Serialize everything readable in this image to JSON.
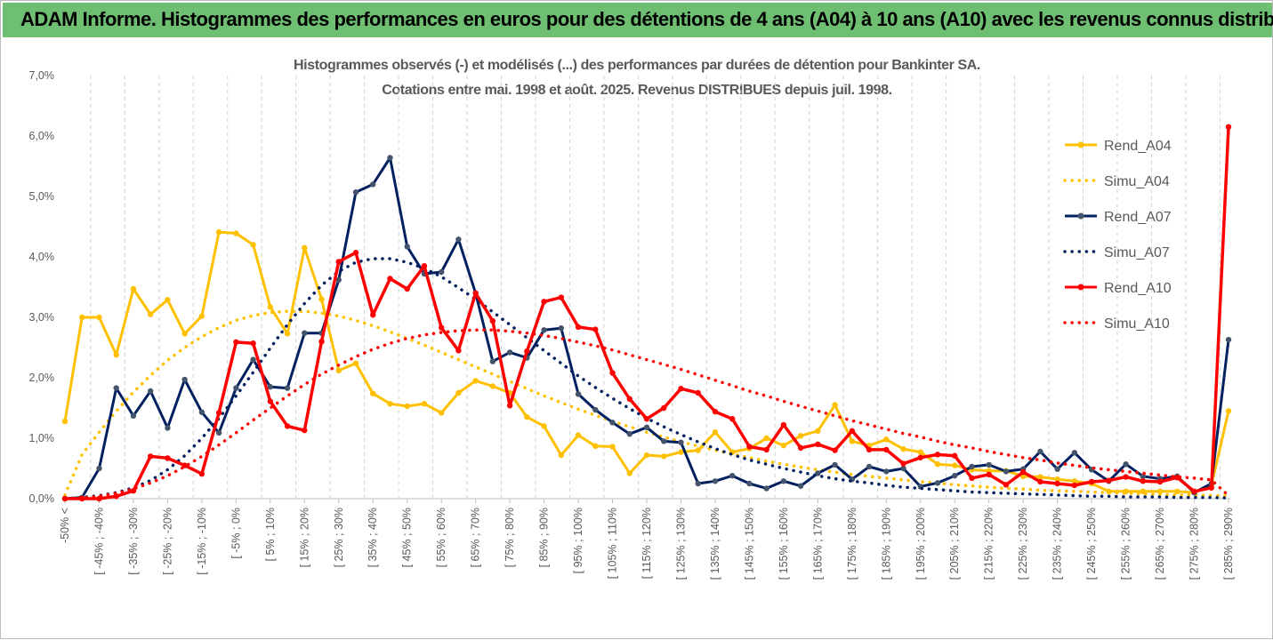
{
  "header": {
    "title": "ADAM Informe. Histogrammes des performances en euros pour des détentions de 4 ans (A04) à 10 ans (A10) avec les revenus connus distribués"
  },
  "chart_data": {
    "type": "line",
    "subtitle_line1": "Histogrammes observés (-) et modélisés (...) des performances par durées de détention pour Bankinter SA.",
    "subtitle_line2": "Cotations entre mai. 1998 et août. 2025. Revenus DISTRIBUES depuis juil. 1998.",
    "ylim": [
      0,
      7
    ],
    "yticks": [
      "0,0%",
      "1,0%",
      "2,0%",
      "3,0%",
      "4,0%",
      "5,0%",
      "6,0%",
      "7,0%"
    ],
    "grid": "vertical dashed",
    "legend_position": "right",
    "x_tick_labels": [
      "-50% <",
      "[ -45% ; -40%",
      "[ -35% ; -30%",
      "[ -25% ; -20%",
      "[ -15% ; -10%",
      "[ -5% ; 0%",
      "[ 5% ; 10%",
      "[ 15% ; 20%",
      "[ 25% ; 30%",
      "[ 35% ; 40%",
      "[ 45% ; 50%",
      "[ 55% ; 60%",
      "[ 65% ; 70%",
      "[ 75% ; 80%",
      "[ 85% ; 90%",
      "[ 95% ; 100%",
      "[ 105% ; 110%",
      "[ 115% ; 120%",
      "[ 125% ; 130%",
      "[ 135% ; 140%",
      "[ 145% ; 150%",
      "[ 155% ; 160%",
      "[ 165% ; 170%",
      "[ 175% ; 180%",
      "[ 185% ; 190%",
      "[ 195% ; 200%",
      "[ 205% ; 210%",
      "[ 215% ; 220%",
      "[ 225% ; 230%",
      "[ 235% ; 240%",
      "[ 245% ; 250%",
      "[ 255% ; 260%",
      "[ 265% ; 270%",
      "[ 275% ; 280%",
      "[ 285% ; 290%"
    ],
    "series": [
      {
        "name": "Rend_A04",
        "style": "solid",
        "color": "#ffc000",
        "values": [
          1.28,
          3.0,
          3.0,
          2.38,
          3.47,
          3.05,
          3.29,
          2.73,
          3.02,
          4.41,
          4.39,
          4.2,
          3.17,
          2.73,
          4.15,
          3.3,
          2.12,
          2.24,
          1.74,
          1.57,
          1.53,
          1.57,
          1.42,
          1.75,
          1.95,
          1.86,
          1.75,
          1.35,
          1.2,
          0.72,
          1.05,
          0.87,
          0.86,
          0.42,
          0.72,
          0.7,
          0.77,
          0.8,
          1.1,
          0.77,
          0.83,
          1.0,
          0.88,
          1.04,
          1.12,
          1.55,
          0.95,
          0.88,
          0.98,
          0.82,
          0.77,
          0.57,
          0.55,
          0.48,
          0.46,
          0.46,
          0.37,
          0.36,
          0.32,
          0.29,
          0.25,
          0.12,
          0.12,
          0.12,
          0.12,
          0.12,
          0.1,
          0.22,
          1.45
        ]
      },
      {
        "name": "Simu_A04",
        "style": "dotted",
        "color": "#ffc000",
        "values": [
          0.06,
          0.73,
          1.1,
          1.45,
          1.76,
          2.04,
          2.29,
          2.5,
          2.68,
          2.83,
          2.95,
          3.03,
          3.08,
          3.1,
          3.1,
          3.07,
          3.02,
          2.95,
          2.86,
          2.76,
          2.65,
          2.54,
          2.42,
          2.3,
          2.18,
          2.06,
          1.94,
          1.82,
          1.7,
          1.59,
          1.48,
          1.38,
          1.28,
          1.19,
          1.1,
          1.02,
          0.94,
          0.87,
          0.8,
          0.74,
          0.68,
          0.62,
          0.57,
          0.52,
          0.48,
          0.44,
          0.4,
          0.37,
          0.34,
          0.31,
          0.28,
          0.26,
          0.23,
          0.21,
          0.19,
          0.17,
          0.16,
          0.14,
          0.13,
          0.12,
          0.11,
          0.1,
          0.09,
          0.08,
          0.07,
          0.06,
          0.06,
          0.05,
          0.05
        ]
      },
      {
        "name": "Rend_A07",
        "style": "solid",
        "color": "#002060",
        "values": [
          0.0,
          0.02,
          0.5,
          1.83,
          1.37,
          1.78,
          1.17,
          1.97,
          1.43,
          1.09,
          1.83,
          2.3,
          1.85,
          1.83,
          2.74,
          2.74,
          3.62,
          5.07,
          5.2,
          5.64,
          4.17,
          3.72,
          3.75,
          4.29,
          3.4,
          2.27,
          2.42,
          2.33,
          2.79,
          2.82,
          1.73,
          1.47,
          1.26,
          1.07,
          1.18,
          0.95,
          0.93,
          0.25,
          0.29,
          0.38,
          0.25,
          0.17,
          0.29,
          0.21,
          0.42,
          0.56,
          0.32,
          0.53,
          0.45,
          0.5,
          0.2,
          0.26,
          0.38,
          0.53,
          0.56,
          0.45,
          0.49,
          0.78,
          0.49,
          0.76,
          0.48,
          0.29,
          0.57,
          0.37,
          0.33,
          0.37,
          0.1,
          0.25,
          2.63
        ]
      },
      {
        "name": "Simu_A07",
        "style": "dotted",
        "color": "#002060",
        "values": [
          0.0,
          0.02,
          0.05,
          0.1,
          0.18,
          0.3,
          0.48,
          0.71,
          1.0,
          1.33,
          1.7,
          2.09,
          2.49,
          2.88,
          3.23,
          3.53,
          3.76,
          3.91,
          3.97,
          3.97,
          3.91,
          3.81,
          3.67,
          3.49,
          3.3,
          3.09,
          2.88,
          2.66,
          2.45,
          2.24,
          2.03,
          1.84,
          1.66,
          1.49,
          1.33,
          1.19,
          1.06,
          0.94,
          0.83,
          0.73,
          0.64,
          0.57,
          0.5,
          0.44,
          0.38,
          0.33,
          0.29,
          0.26,
          0.22,
          0.19,
          0.17,
          0.15,
          0.13,
          0.11,
          0.1,
          0.09,
          0.08,
          0.07,
          0.06,
          0.05,
          0.04,
          0.04,
          0.03,
          0.03,
          0.03,
          0.02,
          0.02,
          0.02,
          0.01
        ]
      },
      {
        "name": "Rend_A10",
        "style": "solid",
        "color": "#ff0000",
        "values": [
          0.0,
          0.0,
          0.0,
          0.04,
          0.13,
          0.7,
          0.67,
          0.55,
          0.41,
          1.42,
          2.59,
          2.57,
          1.61,
          1.2,
          1.13,
          2.6,
          3.92,
          4.07,
          3.04,
          3.64,
          3.47,
          3.85,
          2.83,
          2.45,
          3.4,
          2.94,
          1.54,
          2.44,
          3.26,
          3.33,
          2.84,
          2.8,
          2.08,
          1.65,
          1.32,
          1.5,
          1.82,
          1.75,
          1.44,
          1.32,
          0.86,
          0.81,
          1.22,
          0.84,
          0.9,
          0.8,
          1.12,
          0.81,
          0.81,
          0.58,
          0.68,
          0.73,
          0.71,
          0.34,
          0.4,
          0.23,
          0.44,
          0.28,
          0.25,
          0.22,
          0.28,
          0.3,
          0.36,
          0.29,
          0.28,
          0.35,
          0.12,
          0.18,
          6.15
        ]
      },
      {
        "name": "Simu_A10",
        "style": "dotted",
        "color": "#ff0000",
        "values": [
          0.0,
          0.01,
          0.04,
          0.09,
          0.16,
          0.26,
          0.38,
          0.53,
          0.7,
          0.89,
          1.09,
          1.3,
          1.5,
          1.7,
          1.89,
          2.06,
          2.21,
          2.35,
          2.47,
          2.57,
          2.65,
          2.71,
          2.75,
          2.78,
          2.79,
          2.79,
          2.77,
          2.74,
          2.7,
          2.65,
          2.59,
          2.53,
          2.46,
          2.38,
          2.3,
          2.22,
          2.14,
          2.05,
          1.96,
          1.87,
          1.78,
          1.7,
          1.61,
          1.53,
          1.45,
          1.37,
          1.29,
          1.22,
          1.15,
          1.08,
          1.02,
          0.95,
          0.89,
          0.84,
          0.78,
          0.73,
          0.68,
          0.64,
          0.59,
          0.55,
          0.51,
          0.48,
          0.45,
          0.42,
          0.39,
          0.36,
          0.34,
          0.31,
          0.05
        ]
      }
    ]
  }
}
